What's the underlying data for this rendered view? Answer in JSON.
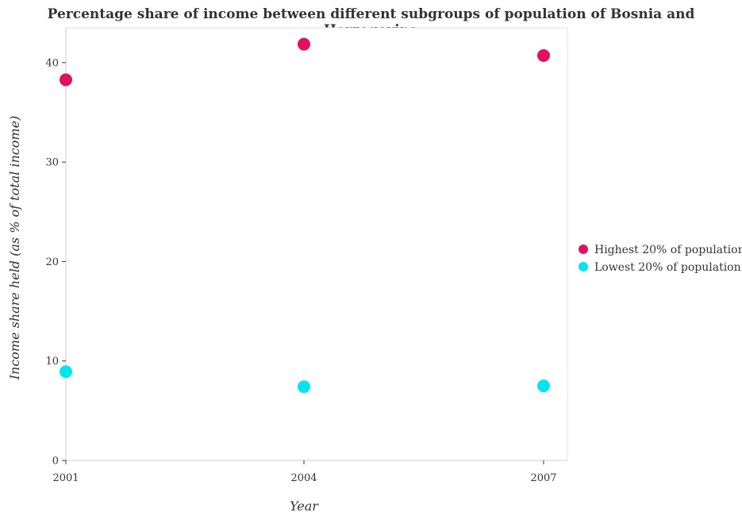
{
  "chart_data": {
    "type": "scatter",
    "title": "Percentage share of income between different subgroups of population of Bosnia and Herzegovina",
    "xlabel": "Year",
    "ylabel": "Income share held (as % of total income)",
    "categories": [
      "2001",
      "2004",
      "2007"
    ],
    "ylim": [
      0,
      43.5
    ],
    "yticks": [
      0,
      10,
      20,
      30,
      40
    ],
    "legend_position": "right",
    "series": [
      {
        "name": "Highest 20% of population",
        "color": "#e0115f",
        "values": [
          38.27,
          41.85,
          40.71
        ]
      },
      {
        "name": "Lowest 20% of population",
        "color": "#00e5ee",
        "values": [
          8.92,
          7.41,
          7.5
        ]
      }
    ]
  }
}
